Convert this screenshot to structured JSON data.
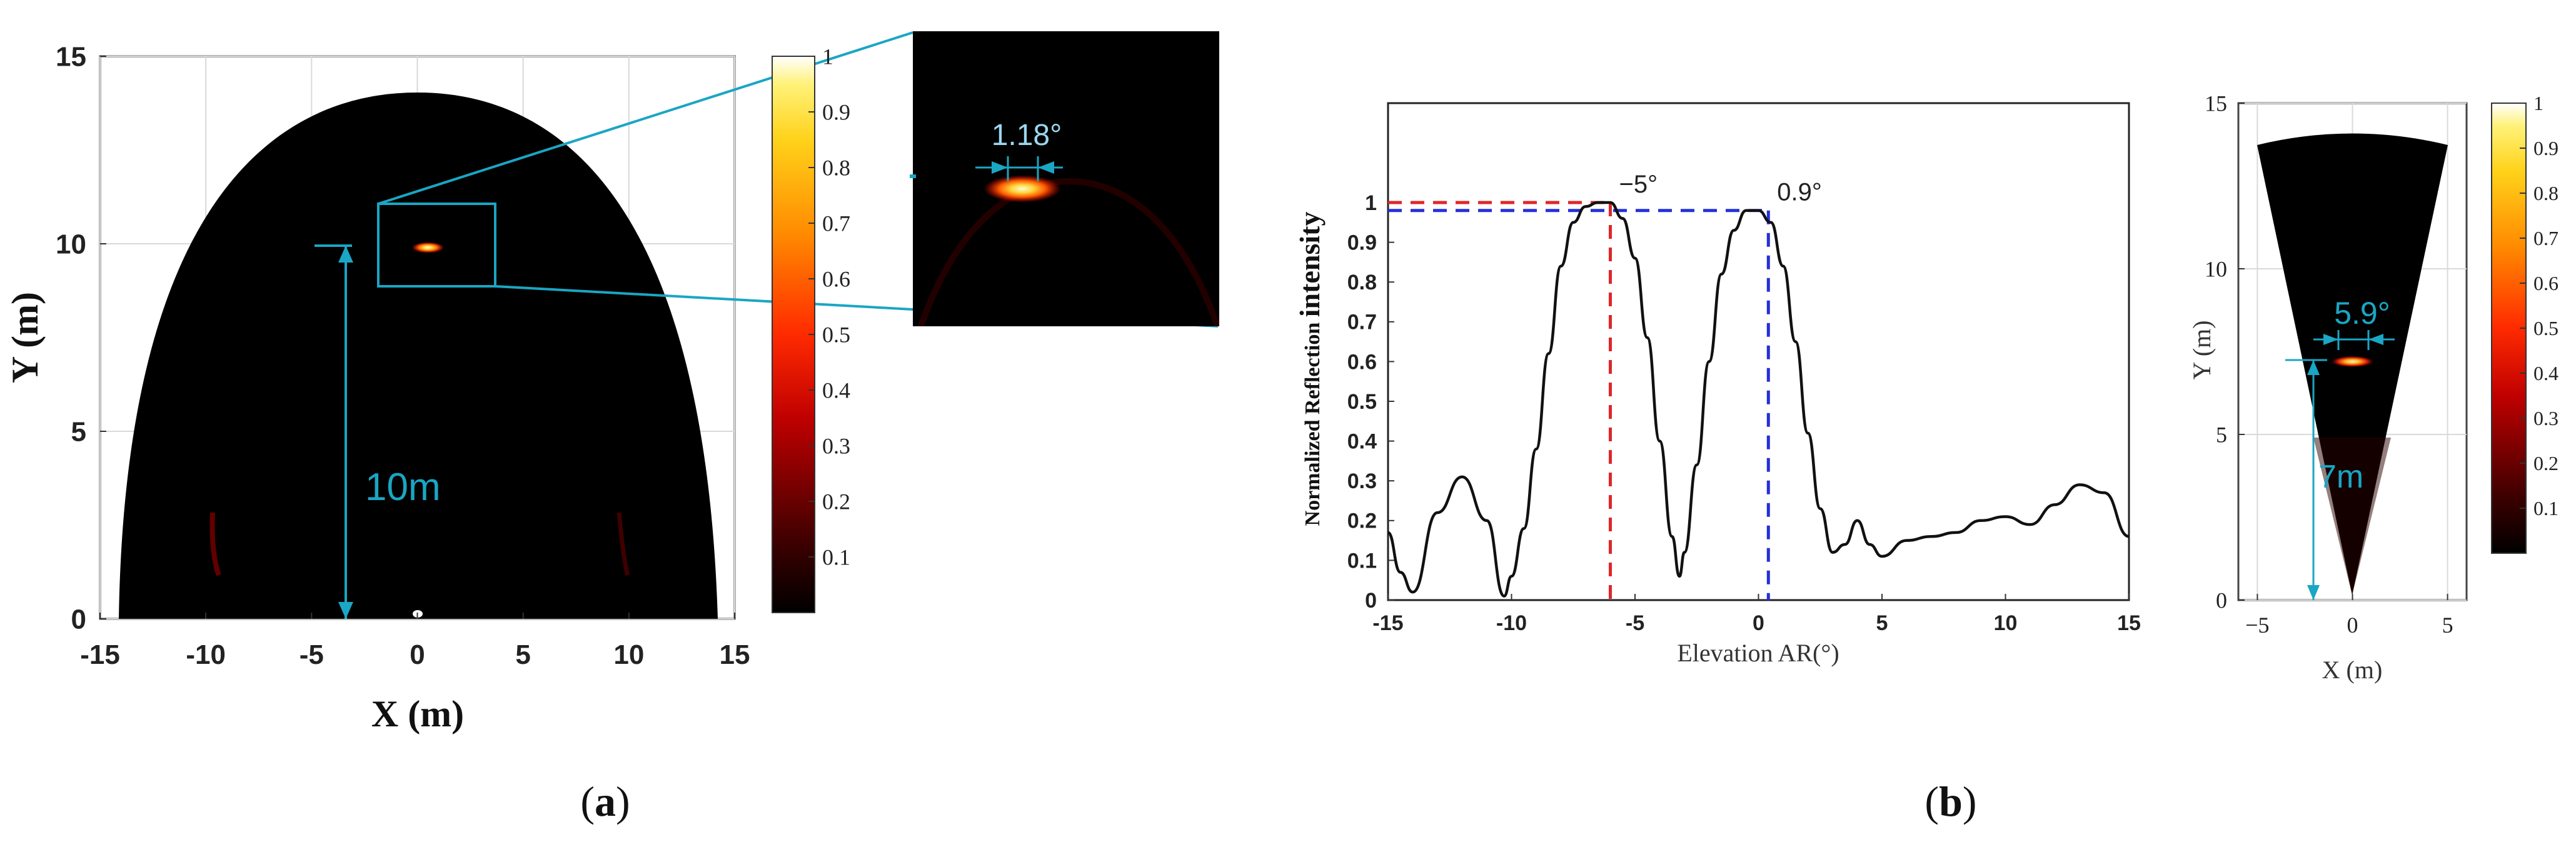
{
  "chart_data": [
    {
      "type": "heatmap",
      "panel": "a",
      "xlabel": "X (m)",
      "ylabel": "Y (m)",
      "xlim": [
        -15,
        15
      ],
      "ylim": [
        0,
        15
      ],
      "xticks": [
        "-15",
        "-10",
        "-5",
        "0",
        "5",
        "10",
        "15"
      ],
      "yticks": [
        "0",
        "5",
        "10",
        "15"
      ],
      "grid": true,
      "colorbar": {
        "range": [
          0,
          1
        ],
        "ticks": [
          "0.1",
          "0.2",
          "0.3",
          "0.4",
          "0.5",
          "0.6",
          "0.7",
          "0.8",
          "0.9",
          "1"
        ],
        "colormap": "hot"
      },
      "hotspot": {
        "x": 0.5,
        "y": 9.9
      },
      "annotations": {
        "distance": "10m",
        "angle": "1.18°"
      },
      "colors": {
        "annotation": "#1aa6c4"
      }
    },
    {
      "type": "line",
      "panel": "b",
      "xlabel": "Elevation AR(°)",
      "ylabel_prefix": "Normalized Reflection ",
      "ylabel_suffix": "intensity",
      "xlim": [
        -15,
        15
      ],
      "ylim": [
        0,
        1.25
      ],
      "xticks": [
        "-15",
        "-10",
        "-5",
        "0",
        "5",
        "10",
        "15"
      ],
      "yticks": [
        "0",
        "0.1",
        "0.2",
        "0.3",
        "0.4",
        "0.5",
        "0.6",
        "0.7",
        "0.8",
        "0.9",
        "1"
      ],
      "grid": false,
      "series": [
        {
          "x": [
            -15,
            -14.5,
            -14,
            -13,
            -12,
            -11,
            -10.3,
            -10,
            -9.5,
            -9,
            -8.5,
            -8,
            -7.5,
            -7,
            -6.5,
            -6,
            -5.5,
            -5,
            -4.5,
            -4,
            -3.5,
            -3.2,
            -3,
            -2.5,
            -2,
            -1.5,
            -1,
            -0.5,
            0,
            0.5,
            1,
            1.5,
            2,
            2.5,
            3,
            3.5,
            4,
            4.5,
            5,
            6,
            7,
            8,
            9,
            10,
            11,
            12,
            13,
            14,
            15
          ],
          "y": [
            0.17,
            0.07,
            0.02,
            0.22,
            0.31,
            0.2,
            0.01,
            0.06,
            0.18,
            0.38,
            0.62,
            0.84,
            0.95,
            0.99,
            1.0,
            1.0,
            0.96,
            0.86,
            0.66,
            0.4,
            0.16,
            0.06,
            0.12,
            0.34,
            0.6,
            0.82,
            0.93,
            0.98,
            0.98,
            0.95,
            0.84,
            0.65,
            0.42,
            0.23,
            0.12,
            0.14,
            0.2,
            0.14,
            0.11,
            0.15,
            0.16,
            0.17,
            0.2,
            0.21,
            0.19,
            0.24,
            0.29,
            0.27,
            0.16
          ]
        }
      ],
      "peaks": [
        {
          "x": -6,
          "y": 1.0,
          "label": "−5°",
          "color": "#e0262a"
        },
        {
          "x": 0.4,
          "y": 0.98,
          "label": "0.9°",
          "color": "#2430d8"
        }
      ]
    },
    {
      "type": "heatmap",
      "panel": "b",
      "xlabel": "X (m)",
      "ylabel": "Y (m)",
      "xlim": [
        -6,
        6
      ],
      "ylim": [
        0,
        15
      ],
      "xticks": [
        "−5",
        "0",
        "5"
      ],
      "yticks": [
        "0",
        "5",
        "10",
        "15"
      ],
      "grid": true,
      "colorbar": {
        "range": [
          0,
          1
        ],
        "ticks": [
          "0.1",
          "0.2",
          "0.3",
          "0.4",
          "0.5",
          "0.6",
          "0.7",
          "0.8",
          "0.9",
          "1"
        ],
        "colormap": "hot"
      },
      "hotspot": {
        "x": 0,
        "y": 7.2
      },
      "annotations": {
        "distance": "7m",
        "angle": "5.9°"
      },
      "colors": {
        "annotation": "#1aa6c4"
      }
    }
  ],
  "labels": {
    "panel_a": "a",
    "panel_b": "b"
  }
}
